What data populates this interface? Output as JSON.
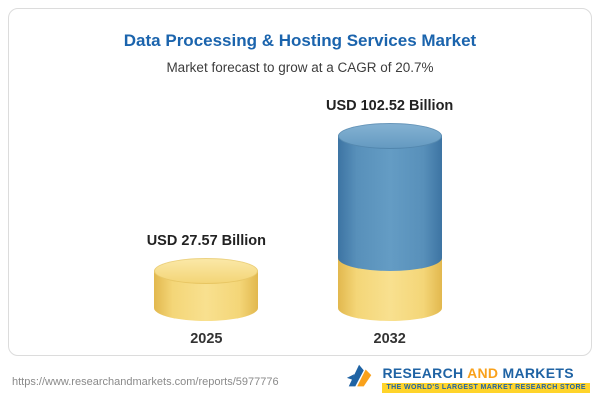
{
  "chart_data": {
    "type": "bar",
    "title": "Data Processing & Hosting Services Market",
    "subtitle": "Market forecast to grow at a CAGR of 20.7%",
    "unit": "USD Billion",
    "categories": [
      "2025",
      "2032"
    ],
    "values": [
      27.57,
      102.52
    ],
    "bars": [
      {
        "category": "2025",
        "value": 27.57,
        "label": "USD 27.57 Billion",
        "color": "#f4d678"
      },
      {
        "category": "2032",
        "value": 102.52,
        "label": "USD 102.52 Billion",
        "color": "#5890ba",
        "base_color": "#f4d678"
      }
    ],
    "ylim": [
      0,
      110
    ],
    "grid": false,
    "legend": "none",
    "cagr": "20.7%"
  },
  "footer": {
    "url": "https://www.researchandmarkets.com/reports/5977776",
    "logo": {
      "word1": "RESEARCH",
      "word2": "AND",
      "word3": "MARKETS",
      "tagline": "THE WORLD'S LARGEST MARKET RESEARCH STORE"
    }
  },
  "colors": {
    "title_blue": "#1b64ad",
    "bar_yellow": "#f4d678",
    "bar_blue": "#5890ba",
    "logo_blue": "#1f63a4",
    "logo_orange": "#f9a11b",
    "tagline_yellow": "#ffd42a"
  }
}
